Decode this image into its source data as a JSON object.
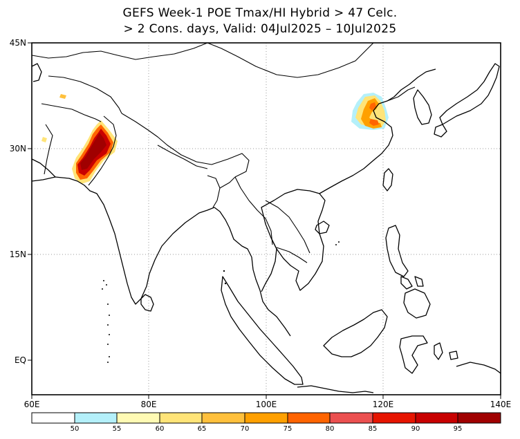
{
  "title": {
    "line1": "GEFS Week-1 POE Tmax/HI Hybrid > 47 Celc.",
    "line2": "> 2 Cons. days, Valid: 04Jul2025 – 10Jul2025"
  },
  "axes": {
    "lat_labels": [
      "45N",
      "30N",
      "15N",
      "EQ"
    ],
    "lon_labels": [
      "60E",
      "80E",
      "100E",
      "120E",
      "140E"
    ],
    "lat_range": [
      -5,
      45
    ],
    "lon_range": [
      60,
      140
    ]
  },
  "colorbar": {
    "labels": [
      "50",
      "55",
      "60",
      "65",
      "70",
      "75",
      "80",
      "85",
      "90",
      "95"
    ],
    "colors": [
      "#ffffff",
      "#b4f0fa",
      "#fffab4",
      "#ffe478",
      "#ffc03c",
      "#ffa000",
      "#ff6400",
      "#eb5050",
      "#e61400",
      "#c80000",
      "#a00000"
    ]
  },
  "colors": {
    "coast": "#000000",
    "grid": "#9a9a9a"
  }
}
